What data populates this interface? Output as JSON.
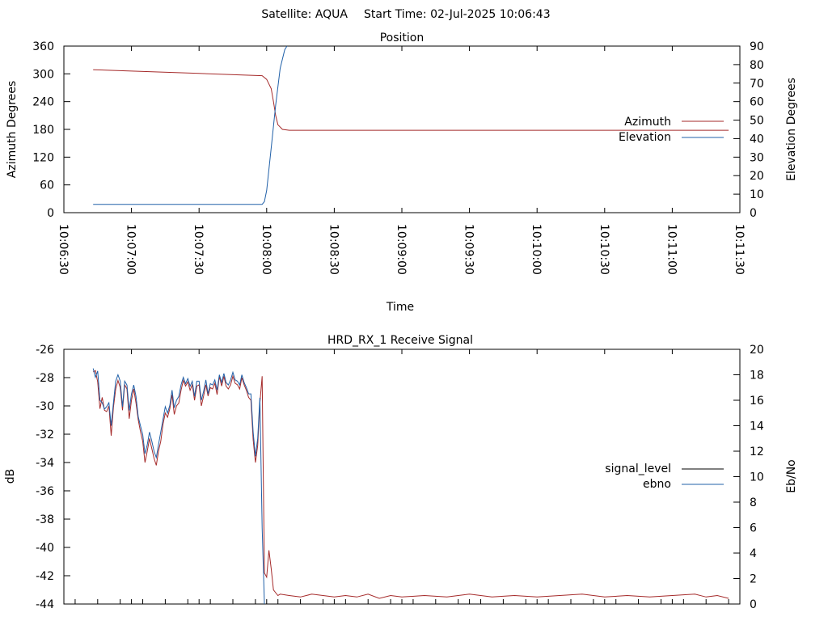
{
  "header": {
    "satellite_label": "Satellite: AQUA",
    "start_time_label": "Start Time: 02-Jul-2025 10:06:43"
  },
  "chart_data": [
    {
      "type": "line",
      "title": "Position",
      "xlabel": "Time",
      "ylabel": "Azimuth Degrees",
      "y2label": "Elevation Degrees",
      "xlim": [
        "10:06:30",
        "10:11:30"
      ],
      "ylim": [
        0,
        360
      ],
      "y2lim": [
        0,
        90
      ],
      "x_ticks": [
        "10:06:30",
        "10:07:00",
        "10:07:30",
        "10:08:00",
        "10:08:30",
        "10:09:00",
        "10:09:30",
        "10:10:00",
        "10:10:30",
        "10:11:00",
        "10:11:30"
      ],
      "y_ticks": [
        "0",
        "60",
        "120",
        "180",
        "240",
        "300",
        "360"
      ],
      "y2_ticks": [
        "0",
        "10",
        "20",
        "30",
        "40",
        "50",
        "60",
        "70",
        "80",
        "90"
      ],
      "grid": false,
      "legend": "right",
      "series": [
        {
          "name": "Azimuth",
          "axis": "y",
          "color": "#a52a2a",
          "x": [
            "10:06:43",
            "10:07:00",
            "10:07:30",
            "10:07:58",
            "10:08:00",
            "10:08:02",
            "10:08:03",
            "10:08:04",
            "10:08:05",
            "10:08:07",
            "10:08:10",
            "10:11:25"
          ],
          "y": [
            309,
            306,
            301,
            296,
            288,
            268,
            240,
            210,
            190,
            180,
            178,
            178
          ]
        },
        {
          "name": "Elevation",
          "axis": "y2",
          "color": "#2060a8",
          "x": [
            "10:06:43",
            "10:07:00",
            "10:07:30",
            "10:07:58",
            "10:07:59",
            "10:08:00",
            "10:08:02",
            "10:08:04",
            "10:08:06",
            "10:08:08",
            "10:08:09"
          ],
          "y": [
            4.5,
            4.5,
            4.5,
            4.5,
            6,
            12,
            35,
            58,
            78,
            88,
            90
          ]
        }
      ]
    },
    {
      "type": "line",
      "title": "HRD_RX_1 Receive Signal",
      "xlabel": "",
      "ylabel": "dB",
      "y2label": "Eb/No",
      "xlim": [
        "10:06:30",
        "10:11:30"
      ],
      "ylim": [
        -44,
        -26
      ],
      "y2lim": [
        0,
        20
      ],
      "y_ticks": [
        "-44",
        "-42",
        "-40",
        "-38",
        "-36",
        "-34",
        "-32",
        "-30",
        "-28",
        "-26"
      ],
      "y2_ticks": [
        "0",
        "2",
        "4",
        "6",
        "8",
        "10",
        "12",
        "14",
        "16",
        "18",
        "20"
      ],
      "grid": false,
      "legend": "right",
      "series": [
        {
          "name": "signal_level",
          "axis": "y",
          "color": "#a52a2a",
          "x": [
            "10:06:43",
            "10:06:44",
            "10:06:45",
            "10:06:46",
            "10:06:47",
            "10:06:48",
            "10:06:49",
            "10:06:50",
            "10:06:51",
            "10:06:52",
            "10:06:53",
            "10:06:54",
            "10:06:55",
            "10:06:56",
            "10:06:57",
            "10:06:58",
            "10:06:59",
            "10:07:00",
            "10:07:01",
            "10:07:02",
            "10:07:03",
            "10:07:04",
            "10:07:05",
            "10:07:06",
            "10:07:07",
            "10:07:08",
            "10:07:09",
            "10:07:10",
            "10:07:11",
            "10:07:12",
            "10:07:13",
            "10:07:14",
            "10:07:15",
            "10:07:16",
            "10:07:17",
            "10:07:18",
            "10:07:19",
            "10:07:20",
            "10:07:21",
            "10:07:22",
            "10:07:23",
            "10:07:24",
            "10:07:25",
            "10:07:26",
            "10:07:27",
            "10:07:28",
            "10:07:29",
            "10:07:30",
            "10:07:31",
            "10:07:32",
            "10:07:33",
            "10:07:34",
            "10:07:35",
            "10:07:36",
            "10:07:37",
            "10:07:38",
            "10:07:39",
            "10:07:40",
            "10:07:41",
            "10:07:42",
            "10:07:43",
            "10:07:44",
            "10:07:45",
            "10:07:46",
            "10:07:47",
            "10:07:48",
            "10:07:49",
            "10:07:50",
            "10:07:51",
            "10:07:52",
            "10:07:53",
            "10:07:54",
            "10:07:55",
            "10:07:56",
            "10:07:57",
            "10:07:58",
            "10:07:59",
            "10:08:00",
            "10:08:01",
            "10:08:02",
            "10:08:03",
            "10:08:04",
            "10:08:05",
            "10:08:06",
            "10:08:10",
            "10:08:15",
            "10:08:20",
            "10:08:25",
            "10:08:30",
            "10:08:35",
            "10:08:40",
            "10:08:45",
            "10:08:50",
            "10:08:55",
            "10:09:00",
            "10:09:10",
            "10:09:20",
            "10:09:30",
            "10:09:40",
            "10:09:50",
            "10:10:00",
            "10:10:10",
            "10:10:20",
            "10:10:30",
            "10:10:40",
            "10:10:50",
            "10:11:00",
            "10:11:10",
            "10:11:15",
            "10:11:20",
            "10:11:25"
          ],
          "y": [
            -27.6,
            -27.5,
            -28.3,
            -30.2,
            -29.4,
            -30.3,
            -30.4,
            -30.0,
            -32.1,
            -30.1,
            -28.8,
            -28.2,
            -28.7,
            -30.3,
            -28.5,
            -28.8,
            -30.9,
            -29.6,
            -28.8,
            -29.8,
            -31.0,
            -31.8,
            -32.5,
            -34.0,
            -33.2,
            -32.3,
            -33.0,
            -33.7,
            -34.2,
            -33.2,
            -32.5,
            -31.3,
            -30.5,
            -30.8,
            -30.2,
            -29.2,
            -30.6,
            -30.0,
            -29.8,
            -28.9,
            -28.2,
            -28.6,
            -28.3,
            -28.9,
            -28.5,
            -29.6,
            -28.6,
            -28.5,
            -30.0,
            -29.3,
            -28.5,
            -29.3,
            -28.7,
            -28.8,
            -28.4,
            -29.2,
            -27.9,
            -28.6,
            -27.9,
            -28.6,
            -28.8,
            -28.5,
            -27.9,
            -28.4,
            -28.5,
            -28.8,
            -28.0,
            -28.5,
            -28.9,
            -29.4,
            -29.6,
            -32.4,
            -34.0,
            -32.8,
            -29.8,
            -27.9,
            -41.8,
            -42.1,
            -40.2,
            -41.5,
            -43.0,
            -43.2,
            -43.4,
            -43.3,
            -43.4,
            -43.5,
            -43.3,
            -43.4,
            -43.5,
            -43.4,
            -43.5,
            -43.3,
            -43.6,
            -43.4,
            -43.5,
            -43.4,
            -43.5,
            -43.3,
            -43.5,
            -43.4,
            -43.5,
            -43.4,
            -43.3,
            -43.5,
            -43.4,
            -43.5,
            -43.4,
            -43.3,
            -43.5,
            -43.4,
            -43.6
          ]
        },
        {
          "name": "ebno",
          "axis": "y2",
          "color": "#2060a8",
          "x": [
            "10:06:43",
            "10:06:44",
            "10:06:45",
            "10:06:46",
            "10:06:47",
            "10:06:48",
            "10:06:49",
            "10:06:50",
            "10:06:51",
            "10:06:52",
            "10:06:53",
            "10:06:54",
            "10:06:55",
            "10:06:56",
            "10:06:57",
            "10:06:58",
            "10:06:59",
            "10:07:00",
            "10:07:01",
            "10:07:02",
            "10:07:03",
            "10:07:04",
            "10:07:05",
            "10:07:06",
            "10:07:07",
            "10:07:08",
            "10:07:09",
            "10:07:10",
            "10:07:11",
            "10:07:12",
            "10:07:13",
            "10:07:14",
            "10:07:15",
            "10:07:16",
            "10:07:17",
            "10:07:18",
            "10:07:19",
            "10:07:20",
            "10:07:21",
            "10:07:22",
            "10:07:23",
            "10:07:24",
            "10:07:25",
            "10:07:26",
            "10:07:27",
            "10:07:28",
            "10:07:29",
            "10:07:30",
            "10:07:31",
            "10:07:32",
            "10:07:33",
            "10:07:34",
            "10:07:35",
            "10:07:36",
            "10:07:37",
            "10:07:38",
            "10:07:39",
            "10:07:40",
            "10:07:41",
            "10:07:42",
            "10:07:43",
            "10:07:44",
            "10:07:45",
            "10:07:46",
            "10:07:47",
            "10:07:48",
            "10:07:49",
            "10:07:50",
            "10:07:51",
            "10:07:52",
            "10:07:53",
            "10:07:54",
            "10:07:55",
            "10:07:56",
            "10:07:57",
            "10:07:58",
            "10:07:59"
          ],
          "y": [
            18.5,
            17.8,
            18.3,
            16.0,
            15.8,
            15.3,
            15.5,
            15.8,
            14.0,
            15.8,
            17.5,
            18.0,
            17.5,
            15.5,
            17.5,
            17.2,
            15.2,
            16.5,
            17.2,
            16.3,
            14.7,
            14.0,
            13.3,
            11.8,
            12.5,
            13.5,
            12.8,
            12.0,
            11.5,
            12.5,
            13.5,
            14.5,
            15.5,
            15.0,
            15.6,
            16.8,
            15.4,
            16.0,
            16.3,
            17.2,
            17.8,
            17.3,
            17.7,
            17.1,
            17.5,
            16.3,
            17.5,
            17.5,
            16.0,
            16.7,
            17.6,
            16.5,
            17.3,
            17.2,
            17.6,
            16.8,
            18.0,
            17.4,
            18.1,
            17.4,
            17.2,
            17.6,
            18.2,
            17.6,
            17.5,
            17.2,
            18.0,
            17.4,
            17.0,
            16.5,
            16.5,
            13.5,
            11.6,
            13.0,
            16.2,
            6.0,
            0.0
          ]
        }
      ]
    }
  ]
}
